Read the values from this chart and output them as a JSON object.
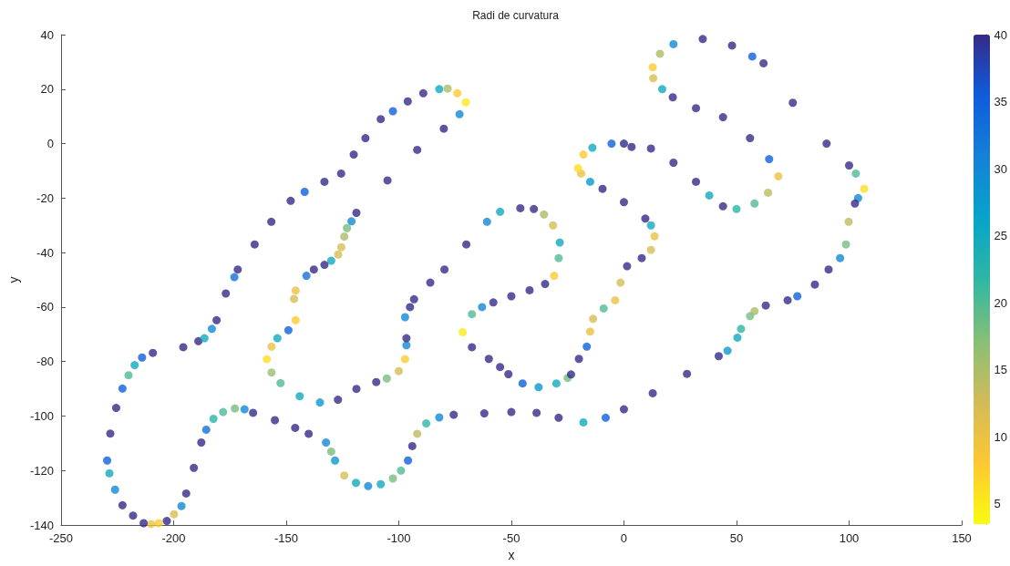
{
  "chart_data": {
    "type": "scatter",
    "title": "Radi de curvatura",
    "xlabel": "x",
    "ylabel": "y",
    "xlim": [
      -250,
      150
    ],
    "xticks": [
      -250,
      -200,
      -150,
      -100,
      -50,
      0,
      50,
      100,
      150
    ],
    "ylim": [
      -140,
      40
    ],
    "yticks": [
      -140,
      -120,
      -100,
      -80,
      -60,
      -40,
      -20,
      0,
      20,
      40
    ],
    "clim": [
      3.5,
      40
    ],
    "cticks": [
      5,
      10,
      15,
      20,
      25,
      30,
      35,
      40
    ],
    "marker": "circle",
    "x": [
      12,
      22,
      32,
      37.9,
      44,
      50,
      58,
      64,
      68.6,
      64.5,
      56,
      44,
      32,
      21.7,
      17,
      13,
      12.8,
      16,
      22,
      35,
      48,
      57,
      62,
      75,
      90,
      100,
      103,
      106.7,
      104,
      102.6,
      99.8,
      98.6,
      96,
      90.9,
      84.8,
      77,
      72.7,
      63,
      58,
      56,
      52,
      50.4,
      46,
      42.1,
      28,
      12.8,
      0,
      -8.1,
      -18,
      -29,
      -38.8,
      -50,
      -62,
      -75.6,
      -82,
      -87.8,
      -91.8,
      -94,
      -95.9,
      -99,
      -102.6,
      -108,
      -113.6,
      -119,
      -124.2,
      -128.3,
      -130,
      -132.3,
      -140,
      -146,
      -155,
      -164.7,
      -168.5,
      -172.8,
      -178,
      -182.3,
      -185.5,
      -187.7,
      -191,
      -194.4,
      -196.5,
      -199.8,
      -203,
      -206.6,
      -210,
      -213.3,
      -218,
      -222.7,
      -226,
      -228.5,
      -229.5,
      -228.1,
      -225.5,
      -222.7,
      -220,
      -217.3,
      -214,
      -209.2,
      -195.7,
      -189,
      -186.3,
      -183,
      -180.9,
      -176.8,
      -173,
      -171.5,
      -164,
      -156.6,
      -148,
      -141.8,
      -133,
      -125.6,
      -120,
      -114.8,
      -108,
      -102.6,
      -96,
      -89.1,
      -82,
      -78.3,
      -74,
      -70.2,
      -73,
      -80,
      -91.8,
      -105,
      -118.8,
      -121,
      -123,
      -124.2,
      -125.5,
      -126.9,
      -130,
      -133,
      -137.7,
      -141,
      -145.8,
      -146.5,
      -145.8,
      -149,
      -153.9,
      -156.5,
      -158.6,
      -156.5,
      -152.5,
      -144,
      -135,
      -127,
      -118.8,
      -110,
      -105.3,
      -100,
      -97.2,
      -96.6,
      -96.6,
      -97.2,
      -95,
      -93.2,
      -86,
      -79.7,
      -70,
      -60.8,
      -55,
      -46,
      -40,
      -35.5,
      -31.5,
      -28.5,
      -29,
      -31,
      -35,
      -41.9,
      -50,
      -58,
      -63,
      -67.5,
      -71.6,
      -67.5,
      -60,
      -55,
      -51.3,
      -45,
      -37.9,
      -30,
      -25,
      -23.5,
      -20,
      -16.5,
      -15,
      -13.7,
      -9,
      -3.9,
      -1.5,
      1.4,
      7.9,
      12,
      13.6,
      12,
      9.5,
      0,
      -9.5,
      -15,
      -19,
      -20.4,
      -18,
      -14,
      -5.5,
      0,
      3.4
    ],
    "values": [
      -1.8,
      -7,
      -14,
      -19,
      -23,
      -24,
      -22,
      -18,
      -12,
      -5.7,
      2,
      9.7,
      13,
      17,
      20,
      24,
      28,
      33,
      36.5,
      38.4,
      36,
      32,
      29.5,
      15,
      0,
      -8,
      -11,
      -16.6,
      -20,
      -22,
      -28.7,
      -37,
      -42,
      -46.2,
      -51.7,
      -56,
      -57.5,
      -59.4,
      -61.5,
      -63.3,
      -68,
      -71.2,
      -76,
      -78,
      -84.5,
      -91.6,
      -97.5,
      -100.6,
      -102.3,
      -100.6,
      -98.8,
      -98.5,
      -99,
      -99.5,
      -100.5,
      -102.7,
      -106.5,
      -111,
      -116.3,
      -120,
      -122.9,
      -125,
      -125.7,
      -124.5,
      -121.8,
      -116.3,
      -113,
      -109.7,
      -106.5,
      -104.3,
      -101.5,
      -98.8,
      -97.5,
      -97.2,
      -98.5,
      -101,
      -105,
      -109.7,
      -119,
      -128.4,
      -133,
      -136,
      -138.5,
      -139.3,
      -139.6,
      -139.3,
      -136.5,
      -132.7,
      -127,
      -121,
      -116.3,
      -106.4,
      -97,
      -89.9,
      -85,
      -81.3,
      -78.5,
      -76.8,
      -74.7,
      -72.5,
      -71.4,
      -68,
      -64.8,
      -55,
      -49,
      -46.2,
      -37,
      -28.7,
      -21,
      -17.7,
      -14,
      -11,
      -4,
      2,
      9,
      11.9,
      15.5,
      18.5,
      20,
      20.2,
      18.5,
      15.2,
      10.8,
      5.5,
      -2.3,
      -13.5,
      -25.4,
      -28.5,
      -31,
      -34.1,
      -38,
      -40.7,
      -43,
      -44.5,
      -46.2,
      -48.5,
      -53.9,
      -57,
      -64.8,
      -68.5,
      -71.4,
      -74.5,
      -79.1,
      -84,
      -87.9,
      -92.7,
      -95,
      -94,
      -90,
      -87.5,
      -86.2,
      -83.5,
      -79.1,
      -74,
      -71.4,
      -63.7,
      -60,
      -57.1,
      -51,
      -46.2,
      -37,
      -28.7,
      -25,
      -23.7,
      -24,
      -26,
      -30,
      -36.3,
      -42,
      -48.5,
      -51.5,
      -53.8,
      -56,
      -58.3,
      -60,
      -62.6,
      -69.2,
      -74.7,
      -79,
      -82,
      -84.6,
      -88,
      -89.4,
      -88,
      -86,
      -84.7,
      -79,
      -74.5,
      -69,
      -64.3,
      -60.5,
      -57.5,
      -51,
      -45,
      -42,
      -39,
      -34,
      -30,
      -27.5,
      -21.5,
      -16.6,
      -14,
      -11,
      -9,
      -4,
      -1.5,
      0,
      0,
      -1.2
    ],
    "cvalues": [
      40,
      40,
      40,
      25,
      40,
      22,
      20,
      14,
      10,
      35,
      40,
      40,
      40,
      40,
      25,
      12,
      8,
      15,
      30,
      40,
      40,
      35,
      40,
      40,
      40,
      40,
      20,
      6,
      30,
      40,
      14,
      18,
      30,
      40,
      40,
      35,
      40,
      40,
      15,
      18,
      22,
      25,
      28,
      40,
      40,
      40,
      40,
      35,
      25,
      40,
      40,
      40,
      40,
      40,
      30,
      22,
      14,
      40,
      35,
      20,
      18,
      25,
      30,
      25,
      12,
      28,
      18,
      30,
      40,
      40,
      40,
      40,
      30,
      18,
      20,
      22,
      33,
      40,
      40,
      40,
      30,
      12,
      40,
      8,
      10,
      40,
      40,
      40,
      30,
      25,
      35,
      40,
      40,
      35,
      20,
      25,
      35,
      40,
      40,
      40,
      25,
      30,
      40,
      40,
      33,
      40,
      40,
      40,
      40,
      35,
      40,
      40,
      40,
      40,
      40,
      35,
      40,
      40,
      25,
      15,
      8,
      5,
      30,
      40,
      40,
      40,
      40,
      30,
      18,
      15,
      12,
      12,
      25,
      40,
      40,
      33,
      10,
      12,
      8,
      35,
      25,
      10,
      6,
      16,
      20,
      25,
      28,
      40,
      40,
      40,
      18,
      12,
      8,
      30,
      40,
      30,
      40,
      40,
      40,
      40,
      40,
      30,
      25,
      40,
      40,
      15,
      12,
      25,
      20,
      8,
      40,
      40,
      40,
      40,
      30,
      20,
      5,
      40,
      40,
      40,
      40,
      35,
      28,
      25,
      18,
      40,
      40,
      35,
      10,
      12,
      20,
      10,
      12,
      40,
      40,
      12,
      10,
      25,
      40,
      40,
      40,
      28,
      10,
      6,
      8,
      25,
      35,
      40,
      40
    ]
  }
}
